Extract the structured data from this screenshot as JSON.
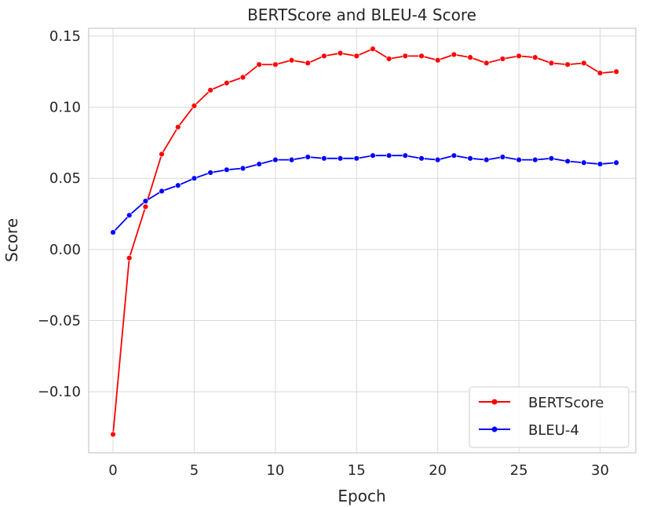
{
  "chart_data": {
    "type": "line",
    "title": "BERTScore and BLEU-4 Score",
    "xlabel": "Epoch",
    "ylabel": "Score",
    "xlim": [
      -1.5,
      32.2
    ],
    "ylim": [
      -0.143,
      0.1555
    ],
    "xticks": [
      0,
      5,
      10,
      15,
      20,
      25,
      30
    ],
    "xtick_labels": [
      "0",
      "5",
      "10",
      "15",
      "20",
      "25",
      "30"
    ],
    "yticks": [
      -0.1,
      -0.05,
      0.0,
      0.05,
      0.1,
      0.15
    ],
    "ytick_labels": [
      "−0.10",
      "−0.05",
      "0.00",
      "0.05",
      "0.10",
      "0.15"
    ],
    "grid": true,
    "legend_position": "lower-right",
    "x": [
      0,
      1,
      2,
      3,
      4,
      5,
      6,
      7,
      8,
      9,
      10,
      11,
      12,
      13,
      14,
      15,
      16,
      17,
      18,
      19,
      20,
      21,
      22,
      23,
      24,
      25,
      26,
      27,
      28,
      29,
      30,
      31
    ],
    "series": [
      {
        "name": "BERTScore",
        "color": "#ff0000",
        "values": [
          -0.13,
          -0.006,
          0.03,
          0.067,
          0.086,
          0.101,
          0.112,
          0.117,
          0.121,
          0.13,
          0.13,
          0.133,
          0.131,
          0.136,
          0.138,
          0.136,
          0.141,
          0.134,
          0.136,
          0.136,
          0.133,
          0.137,
          0.135,
          0.131,
          0.134,
          0.136,
          0.135,
          0.131,
          0.13,
          0.131,
          0.124,
          0.125
        ]
      },
      {
        "name": "BLEU-4",
        "color": "#0000ff",
        "values": [
          0.012,
          0.024,
          0.034,
          0.041,
          0.045,
          0.05,
          0.054,
          0.056,
          0.057,
          0.06,
          0.063,
          0.063,
          0.065,
          0.064,
          0.064,
          0.064,
          0.066,
          0.066,
          0.066,
          0.064,
          0.063,
          0.066,
          0.064,
          0.063,
          0.065,
          0.063,
          0.063,
          0.064,
          0.062,
          0.061,
          0.06,
          0.061
        ]
      }
    ]
  }
}
